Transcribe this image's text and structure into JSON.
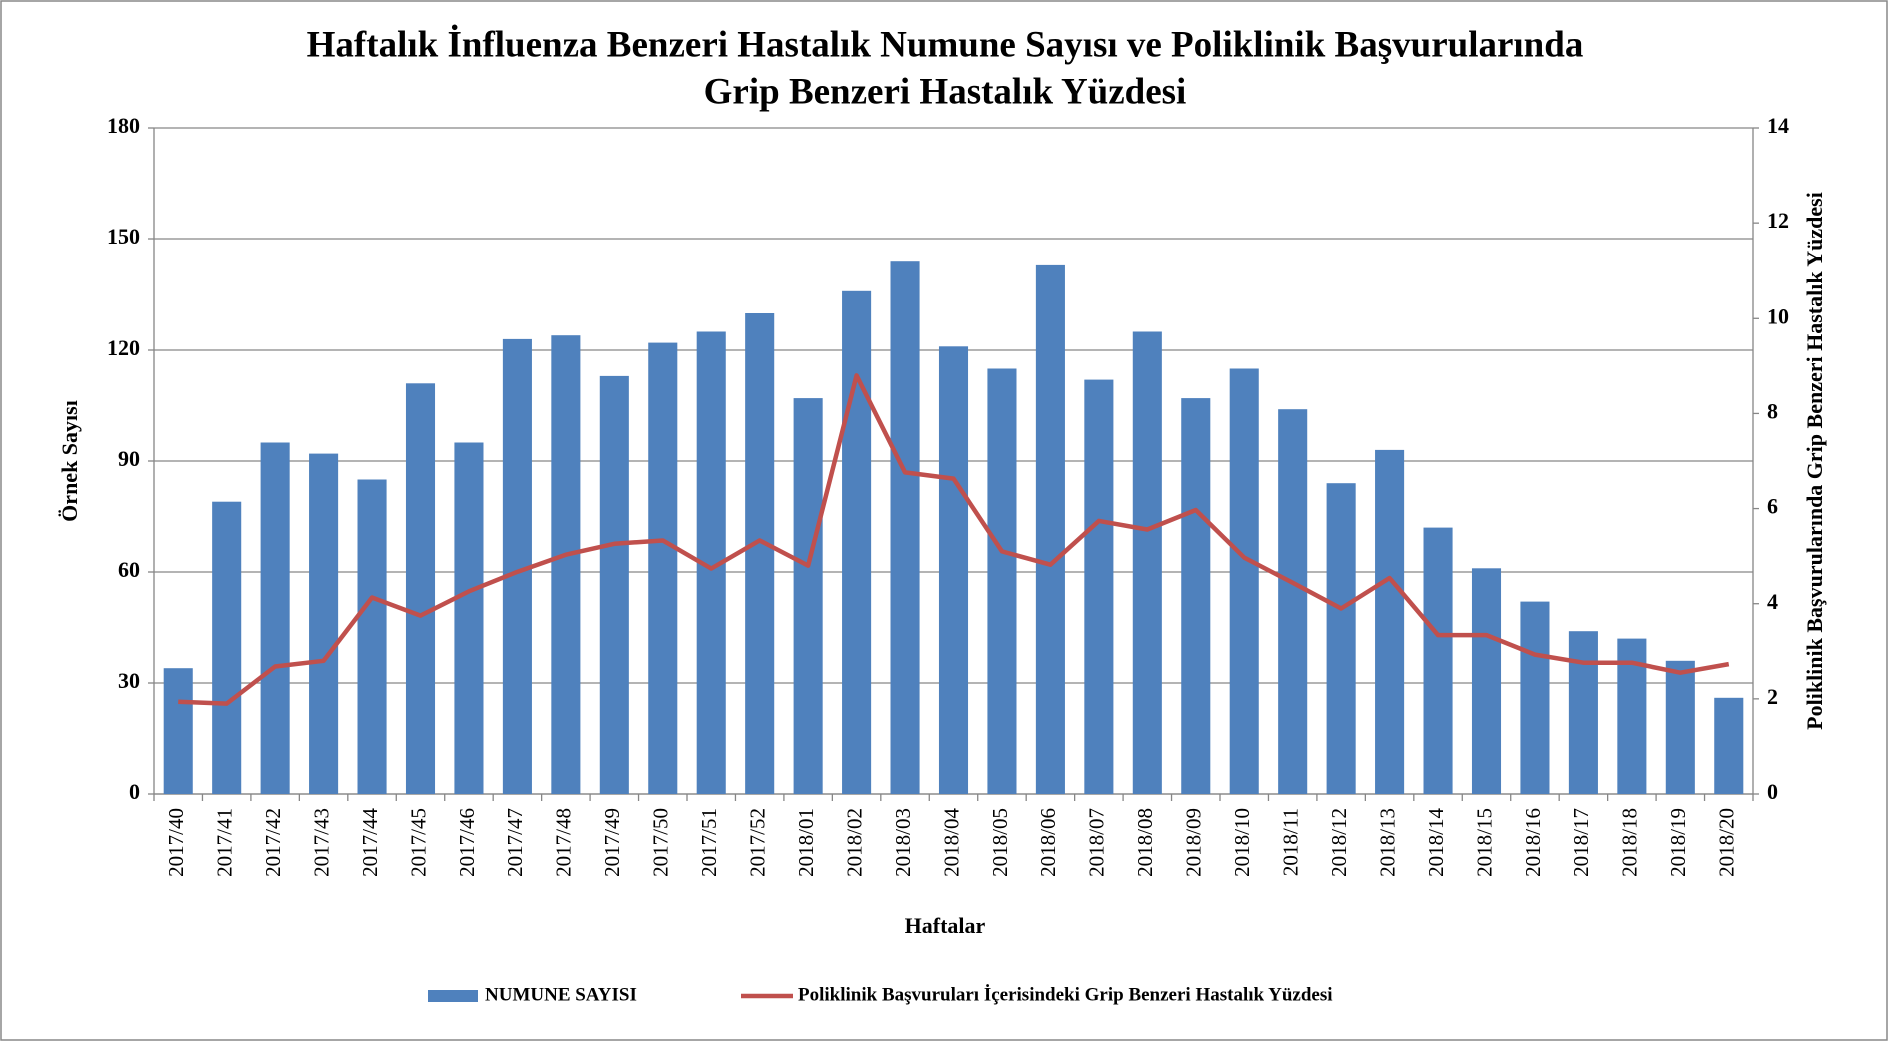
{
  "chart_data": {
    "type": "bar",
    "title": [
      "Haftalık İnfluenza Benzeri Hastalık Numune Sayısı ve Poliklinik Başvurularında",
      "Grip Benzeri Hastalık Yüzdesi"
    ],
    "x_label": "Haftalar",
    "y_label": "Örnek Sayısı",
    "y2_label": "Poliklinik Başvurularında Grip Benzeri Hastalık Yüzdesi",
    "categories": [
      "2017/40",
      "2017/41",
      "2017/42",
      "2017/43",
      "2017/44",
      "2017/45",
      "2017/46",
      "2017/47",
      "2017/48",
      "2017/49",
      "2017/50",
      "2017/51",
      "2017/52",
      "2018/01",
      "2018/02",
      "2018/03",
      "2018/04",
      "2018/05",
      "2018/06",
      "2018/07",
      "2018/08",
      "2018/09",
      "2018/10",
      "2018/11",
      "2018/12",
      "2018/13",
      "2018/14",
      "2018/15",
      "2018/16",
      "2018/17",
      "2018/18",
      "2018/19",
      "2018/20"
    ],
    "series": [
      {
        "name": "NUMUNE SAYISI",
        "type": "bar",
        "color": "#4f81bd",
        "values": [
          34,
          79,
          95,
          92,
          85,
          111,
          95,
          123,
          124,
          113,
          122,
          125,
          130,
          107,
          136,
          144,
          121,
          115,
          143,
          112,
          125,
          107,
          115,
          104,
          84,
          93,
          72,
          61,
          52,
          44,
          42,
          36,
          26
        ]
      },
      {
        "name": "Poliklinik Başvuruları İçerisindeki Grip Benzeri Hastalık Yüzdesi",
        "type": "line",
        "axis": "y2",
        "color": "#c0504d",
        "values": [
          1.94,
          1.9,
          2.68,
          2.8,
          4.13,
          3.75,
          4.26,
          4.67,
          5.03,
          5.26,
          5.33,
          4.74,
          5.33,
          4.8,
          8.8,
          6.76,
          6.63,
          5.1,
          4.82,
          5.74,
          5.56,
          5.97,
          4.97,
          4.44,
          3.9,
          4.54,
          3.34,
          3.34,
          2.93,
          2.76,
          2.76,
          2.55,
          2.73
        ]
      }
    ],
    "ylim": [
      0,
      180
    ],
    "yticks": [
      0,
      30,
      60,
      90,
      120,
      150,
      180
    ],
    "y2lim": [
      0,
      14
    ],
    "y2ticks": [
      0,
      2,
      4,
      6,
      8,
      10,
      12,
      14
    ],
    "grid": true
  }
}
